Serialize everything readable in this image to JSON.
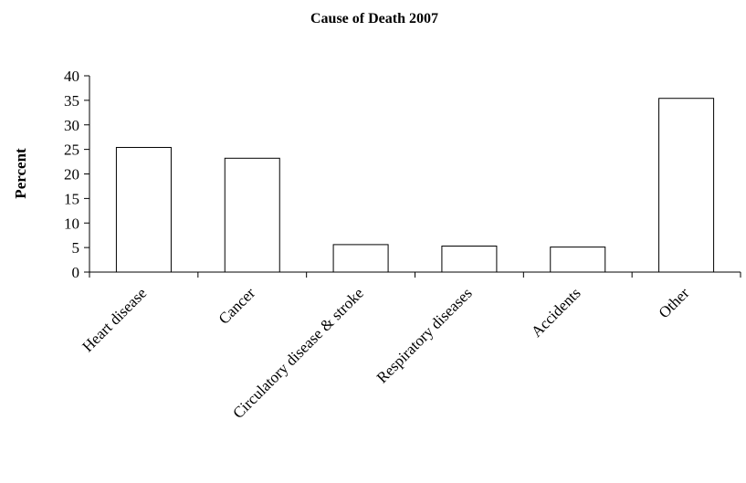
{
  "chart_data": {
    "type": "bar",
    "title": "Cause of Death 2007",
    "xlabel": "",
    "ylabel": "Percent",
    "categories": [
      "Heart disease",
      "Cancer",
      "Circulatory disease & stroke",
      "Respiratory diseases",
      "Accidents",
      "Other"
    ],
    "values": [
      25.4,
      23.2,
      5.6,
      5.3,
      5.1,
      35.4
    ],
    "ylim": [
      0,
      40
    ],
    "yticks": [
      "0",
      "5",
      "10",
      "15",
      "20",
      "25",
      "30",
      "35",
      "40"
    ],
    "grid": false,
    "legend": "none",
    "bar_fill": "#ffffff",
    "bar_stroke": "#000000"
  }
}
